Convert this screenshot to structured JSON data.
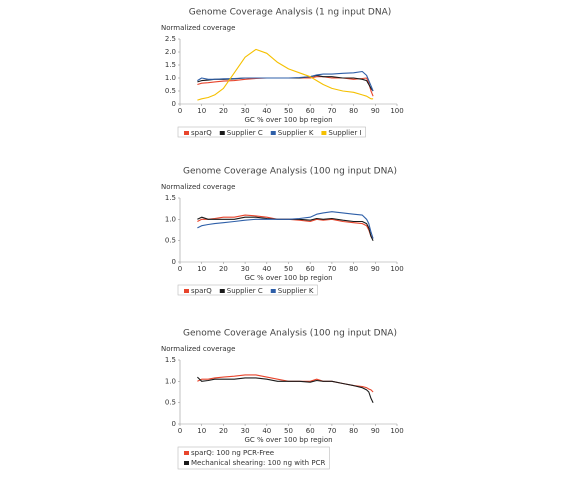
{
  "chart_data": [
    {
      "type": "line",
      "title": "Genome Coverage Analysis (1 ng input DNA)",
      "y_label": "Normalized coverage",
      "x_label": "GC % over 100 bp region",
      "x": [
        8,
        10,
        13,
        16,
        20,
        25,
        30,
        35,
        40,
        45,
        50,
        55,
        60,
        63,
        66,
        70,
        75,
        80,
        84,
        86,
        87,
        88,
        89
      ],
      "xlim": [
        0,
        100
      ],
      "xticks": [
        0,
        10,
        20,
        30,
        40,
        50,
        60,
        70,
        80,
        90,
        100
      ],
      "ylim": [
        0,
        2.5
      ],
      "yticks": [
        0,
        0.5,
        {
          "value": 1,
          "label": "1.0"
        },
        1.5,
        {
          "value": 2,
          "label": "2.0"
        },
        2.5
      ],
      "legend": "bottom",
      "legend_layout": "row",
      "series": [
        {
          "name": "sparQ",
          "color": "#e8452c",
          "values": [
            0.75,
            0.8,
            0.82,
            0.85,
            0.88,
            0.9,
            0.95,
            0.98,
            1.0,
            1.0,
            1.0,
            1.0,
            1.0,
            1.05,
            1.05,
            1.0,
            1.0,
            0.95,
            0.98,
            1.0,
            0.8,
            0.5,
            0.3
          ]
        },
        {
          "name": "Supplier C",
          "color": "#1a1a1a",
          "values": [
            0.85,
            0.9,
            0.92,
            0.95,
            0.95,
            0.97,
            1.0,
            1.0,
            1.0,
            1.0,
            1.0,
            1.0,
            1.05,
            1.1,
            1.05,
            1.05,
            1.0,
            1.0,
            0.95,
            0.9,
            0.75,
            0.6,
            0.5
          ]
        },
        {
          "name": "Supplier K",
          "color": "#2e5fa8",
          "values": [
            0.9,
            1.0,
            0.95,
            0.95,
            0.97,
            0.98,
            1.0,
            1.0,
            1.0,
            1.0,
            1.0,
            1.02,
            1.05,
            1.12,
            1.15,
            1.15,
            1.18,
            1.2,
            1.25,
            1.1,
            0.9,
            0.7,
            0.5
          ]
        },
        {
          "name": "Supplier I",
          "color": "#f5c000",
          "values": [
            0.15,
            0.2,
            0.25,
            0.35,
            0.6,
            1.2,
            1.8,
            2.1,
            1.95,
            1.6,
            1.35,
            1.2,
            1.05,
            0.9,
            0.75,
            0.6,
            0.5,
            0.45,
            0.35,
            0.3,
            0.25,
            0.2,
            0.2
          ]
        }
      ]
    },
    {
      "type": "line",
      "title": "Genome Coverage Analysis (100 ng input DNA)",
      "y_label": "Normalized coverage",
      "x_label": "GC % over 100 bp region",
      "x": [
        8,
        10,
        13,
        16,
        20,
        25,
        30,
        35,
        40,
        45,
        50,
        55,
        60,
        63,
        66,
        70,
        75,
        80,
        84,
        86,
        87,
        88,
        89
      ],
      "xlim": [
        0,
        100
      ],
      "xticks": [
        0,
        10,
        20,
        30,
        40,
        50,
        60,
        70,
        80,
        90,
        100
      ],
      "ylim": [
        0,
        1.5
      ],
      "yticks": [
        0,
        0.5,
        {
          "value": 1,
          "label": "1.0"
        },
        1.5
      ],
      "legend": "bottom",
      "legend_layout": "row",
      "series": [
        {
          "name": "sparQ",
          "color": "#e8452c",
          "values": [
            0.95,
            1.0,
            1.0,
            1.02,
            1.05,
            1.05,
            1.1,
            1.08,
            1.05,
            1.0,
            1.0,
            0.98,
            0.95,
            1.0,
            0.98,
            1.0,
            0.95,
            0.92,
            0.9,
            0.85,
            0.75,
            0.6,
            0.55
          ]
        },
        {
          "name": "Supplier C",
          "color": "#1a1a1a",
          "values": [
            1.0,
            1.05,
            1.0,
            1.0,
            1.0,
            1.0,
            1.05,
            1.05,
            1.02,
            1.0,
            1.0,
            1.0,
            0.98,
            1.02,
            1.0,
            1.02,
            0.98,
            0.95,
            0.95,
            0.9,
            0.8,
            0.6,
            0.5
          ]
        },
        {
          "name": "Supplier K",
          "color": "#2e5fa8",
          "values": [
            0.8,
            0.85,
            0.88,
            0.9,
            0.92,
            0.95,
            0.98,
            1.0,
            1.0,
            1.0,
            1.0,
            1.02,
            1.05,
            1.12,
            1.15,
            1.18,
            1.15,
            1.12,
            1.1,
            1.0,
            0.9,
            0.7,
            0.55
          ]
        }
      ]
    },
    {
      "type": "line",
      "title": "Genome Coverage Analysis (100 ng input DNA)",
      "y_label": "Normalized coverage",
      "x_label": "GC % over 100 bp region",
      "x": [
        8,
        10,
        13,
        16,
        20,
        25,
        30,
        35,
        40,
        45,
        50,
        55,
        60,
        63,
        66,
        70,
        75,
        80,
        84,
        86,
        87,
        88,
        89
      ],
      "xlim": [
        0,
        100
      ],
      "xticks": [
        0,
        10,
        20,
        30,
        40,
        50,
        60,
        70,
        80,
        90,
        100
      ],
      "ylim": [
        0,
        1.5
      ],
      "yticks": [
        0,
        0.5,
        {
          "value": 1,
          "label": "1.0"
        },
        1.5
      ],
      "legend": "bottom",
      "legend_layout": "column",
      "series": [
        {
          "name": "sparQ: 100 ng PCR-Free",
          "color": "#e8452c",
          "values": [
            1.0,
            1.05,
            1.05,
            1.08,
            1.1,
            1.12,
            1.15,
            1.15,
            1.1,
            1.05,
            1.0,
            1.0,
            1.0,
            1.05,
            1.0,
            1.0,
            0.95,
            0.9,
            0.88,
            0.85,
            0.82,
            0.8,
            0.75
          ]
        },
        {
          "name": "Mechanical shearing: 100 ng with PCR",
          "color": "#1a1a1a",
          "values": [
            1.1,
            1.0,
            1.02,
            1.05,
            1.05,
            1.05,
            1.08,
            1.08,
            1.05,
            1.0,
            1.0,
            1.0,
            0.98,
            1.02,
            1.0,
            1.0,
            0.95,
            0.9,
            0.85,
            0.8,
            0.75,
            0.6,
            0.5
          ]
        }
      ]
    }
  ]
}
